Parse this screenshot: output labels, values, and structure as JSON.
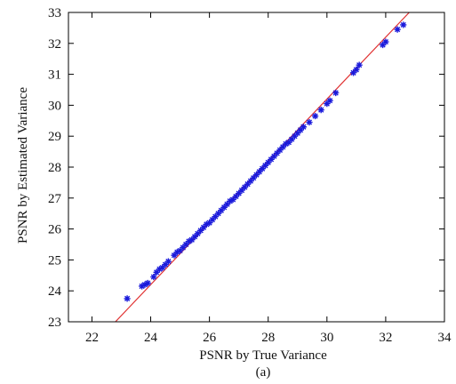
{
  "chart_data": {
    "type": "scatter",
    "title": "",
    "xlabel": "PSNR by True Variance",
    "ylabel": "PSNR by Estimated Variance",
    "caption": "(a)",
    "xlim": [
      21.2,
      34.0
    ],
    "ylim": [
      23,
      33
    ],
    "xticks": [
      "22",
      "24",
      "26",
      "28",
      "30",
      "32",
      "34"
    ],
    "yticks": [
      "23",
      "24",
      "25",
      "26",
      "27",
      "28",
      "29",
      "30",
      "31",
      "32",
      "33"
    ],
    "grid": false,
    "legend": "none",
    "colors": {
      "points": "#1a1adb",
      "reference_line": "#e03030",
      "axes": "#000000"
    },
    "reference_line": {
      "label": "",
      "points": [
        [
          22.8,
          23.0
        ],
        [
          32.8,
          33.0
        ]
      ]
    },
    "series": [
      {
        "marker": "star",
        "points": [
          [
            23.2,
            23.75
          ],
          [
            23.7,
            24.15
          ],
          [
            23.8,
            24.2
          ],
          [
            23.9,
            24.25
          ],
          [
            24.1,
            24.45
          ],
          [
            24.2,
            24.6
          ],
          [
            24.3,
            24.7
          ],
          [
            24.4,
            24.75
          ],
          [
            24.5,
            24.85
          ],
          [
            24.6,
            24.95
          ],
          [
            24.8,
            25.15
          ],
          [
            24.9,
            25.25
          ],
          [
            25.0,
            25.3
          ],
          [
            25.1,
            25.4
          ],
          [
            25.2,
            25.5
          ],
          [
            25.3,
            25.6
          ],
          [
            25.4,
            25.65
          ],
          [
            25.5,
            25.75
          ],
          [
            25.6,
            25.85
          ],
          [
            25.7,
            25.95
          ],
          [
            25.8,
            26.05
          ],
          [
            25.9,
            26.15
          ],
          [
            26.0,
            26.2
          ],
          [
            26.1,
            26.3
          ],
          [
            26.2,
            26.4
          ],
          [
            26.3,
            26.5
          ],
          [
            26.4,
            26.6
          ],
          [
            26.5,
            26.7
          ],
          [
            26.6,
            26.8
          ],
          [
            26.7,
            26.9
          ],
          [
            26.8,
            26.95
          ],
          [
            26.9,
            27.05
          ],
          [
            27.0,
            27.15
          ],
          [
            27.1,
            27.25
          ],
          [
            27.2,
            27.35
          ],
          [
            27.3,
            27.45
          ],
          [
            27.4,
            27.55
          ],
          [
            27.5,
            27.65
          ],
          [
            27.6,
            27.75
          ],
          [
            27.7,
            27.85
          ],
          [
            27.8,
            27.95
          ],
          [
            27.9,
            28.05
          ],
          [
            28.0,
            28.15
          ],
          [
            28.1,
            28.25
          ],
          [
            28.2,
            28.35
          ],
          [
            28.3,
            28.45
          ],
          [
            28.4,
            28.55
          ],
          [
            28.5,
            28.65
          ],
          [
            28.6,
            28.75
          ],
          [
            28.7,
            28.8
          ],
          [
            28.8,
            28.9
          ],
          [
            28.9,
            29.0
          ],
          [
            29.0,
            29.1
          ],
          [
            29.1,
            29.2
          ],
          [
            29.2,
            29.3
          ],
          [
            29.4,
            29.45
          ],
          [
            29.6,
            29.65
          ],
          [
            29.8,
            29.85
          ],
          [
            30.0,
            30.05
          ],
          [
            30.1,
            30.15
          ],
          [
            30.3,
            30.4
          ],
          [
            30.9,
            31.05
          ],
          [
            31.0,
            31.15
          ],
          [
            31.1,
            31.3
          ],
          [
            31.9,
            31.95
          ],
          [
            32.0,
            32.05
          ],
          [
            32.4,
            32.45
          ],
          [
            32.6,
            32.6
          ]
        ]
      }
    ]
  }
}
